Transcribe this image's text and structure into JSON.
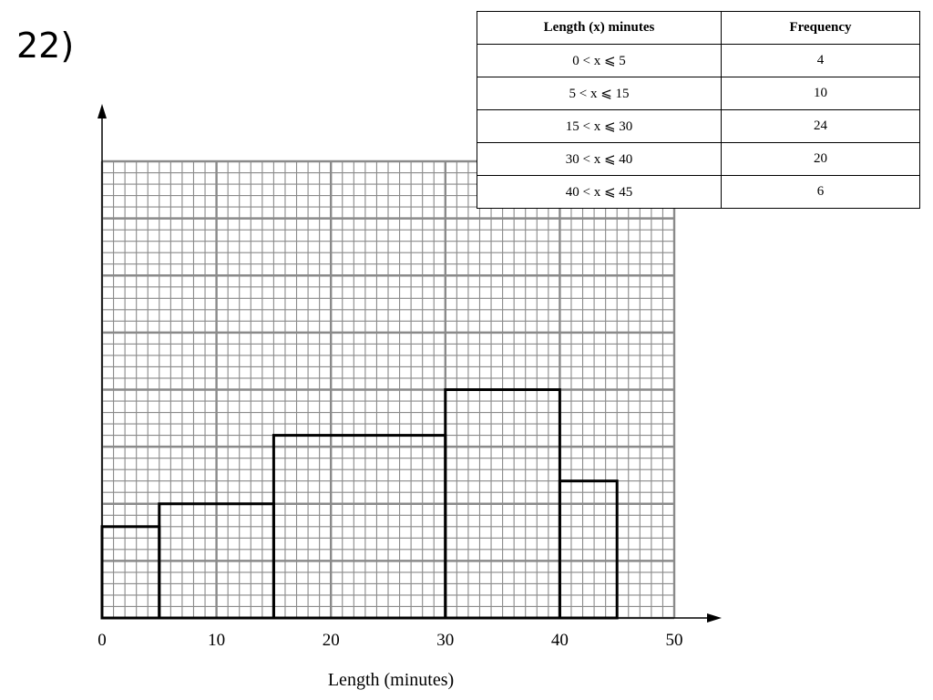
{
  "question_number": "22)",
  "table": {
    "headers": [
      "Length (x) minutes",
      "Frequency"
    ],
    "rows": [
      {
        "interval": "0 < x ⩽ 5",
        "frequency": "4"
      },
      {
        "interval": "5 < x ⩽ 15",
        "frequency": "10"
      },
      {
        "interval": "15 < x ⩽ 30",
        "frequency": "24"
      },
      {
        "interval": "30 < x ⩽ 40",
        "frequency": "20"
      },
      {
        "interval": "40 < x ⩽ 45",
        "frequency": "6"
      }
    ]
  },
  "chart_data": {
    "type": "bar",
    "subtype": "histogram",
    "xlabel": "Length (minutes)",
    "ylabel": "",
    "xlim": [
      0,
      50
    ],
    "xticks": [
      0,
      10,
      20,
      30,
      40,
      50
    ],
    "ylim": [
      0,
      4
    ],
    "grid": true,
    "bins": [
      {
        "start": 0,
        "end": 5,
        "frequency": 4,
        "density": 0.8
      },
      {
        "start": 5,
        "end": 15,
        "frequency": 10,
        "density": 1.0
      },
      {
        "start": 15,
        "end": 30,
        "frequency": 24,
        "density": 1.6
      },
      {
        "start": 30,
        "end": 40,
        "frequency": 20,
        "density": 2.0
      },
      {
        "start": 40,
        "end": 45,
        "frequency": 6,
        "density": 1.2
      }
    ]
  }
}
